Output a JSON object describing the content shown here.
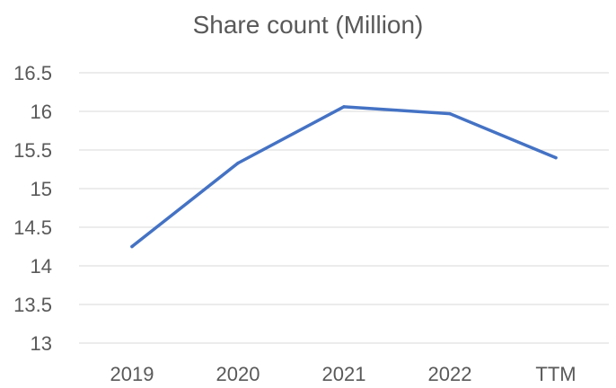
{
  "chart_data": {
    "type": "line",
    "title": "Share count (Million)",
    "categories": [
      "2019",
      "2020",
      "2021",
      "2022",
      "TTM"
    ],
    "series": [
      {
        "values": [
          14.25,
          15.33,
          16.06,
          15.97,
          15.4
        ]
      }
    ],
    "ylim": [
      13,
      16.5
    ],
    "yticks": [
      "13",
      "13.5",
      "14",
      "14.5",
      "15",
      "15.5",
      "16",
      "16.5"
    ],
    "grid": true,
    "line_color": "#4472C4",
    "grid_color": "#D9D9D9"
  }
}
